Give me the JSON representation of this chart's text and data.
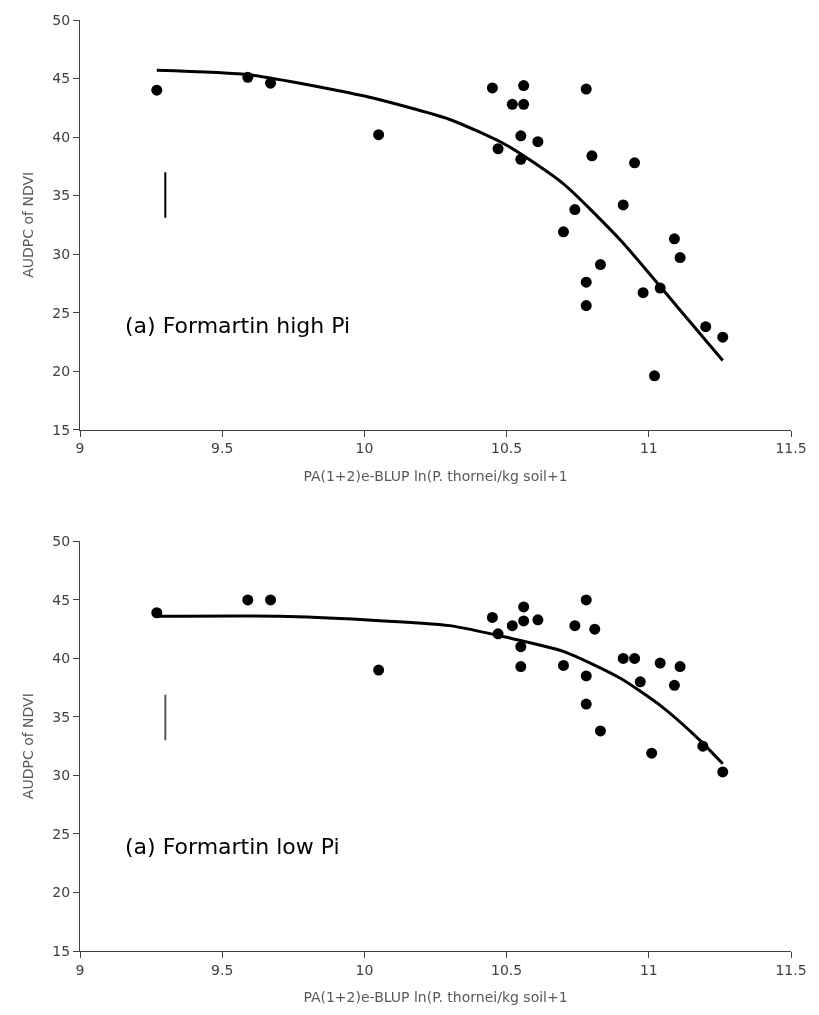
{
  "chart_data": [
    {
      "type": "scatter",
      "xlabel": "PA(1+2)e-BLUP ln(P. thornei/kg soil+1",
      "ylabel": "AUDPC of NDVI",
      "annotations": [
        "(a) Formartin high Pi"
      ],
      "xlim": [
        9,
        11.5
      ],
      "xticks": [
        9,
        9.5,
        10,
        10.5,
        11,
        11.5
      ],
      "ylim": [
        15,
        50
      ],
      "yticks": [
        15,
        20,
        25,
        30,
        35,
        40,
        45,
        50
      ],
      "marker": "circle",
      "series": [
        {
          "color": "#000000",
          "x": [
            9.27,
            9.59,
            9.67,
            10.05,
            10.45,
            10.47,
            10.52,
            10.55,
            10.56,
            10.56,
            10.55,
            10.61,
            10.7,
            10.74,
            10.78,
            10.8,
            10.78,
            10.78,
            10.83,
            10.91,
            10.95,
            10.98,
            11.02,
            11.04,
            11.09,
            11.11,
            11.2,
            11.26
          ],
          "values": [
            44.0,
            45.1,
            44.6,
            40.2,
            44.2,
            39.0,
            42.8,
            40.1,
            44.4,
            42.8,
            38.1,
            39.6,
            31.9,
            33.8,
            44.1,
            38.4,
            27.6,
            25.6,
            29.1,
            34.2,
            37.8,
            26.7,
            19.6,
            27.1,
            31.3,
            29.7,
            23.8,
            22.9
          ]
        },
        {
          "type": "line",
          "color": "#000000",
          "marker": "none",
          "x": [
            9.27,
            9.6,
            10.0,
            10.3,
            10.5,
            10.7,
            10.9,
            11.1,
            11.26
          ],
          "values": [
            45.7,
            45.3,
            43.5,
            41.5,
            39.3,
            36.0,
            31.2,
            25.5,
            20.9
          ]
        },
        {
          "type": "line",
          "color": "#000000",
          "marker": "none",
          "x": [
            9.3,
            9.3
          ],
          "values": [
            33.1,
            37.0
          ]
        }
      ]
    },
    {
      "type": "scatter",
      "xlabel": "PA(1+2)e-BLUP ln(P. thornei/kg soil+1",
      "ylabel": "AUDPC of NDVI",
      "annotations": [
        "(a) Formartin low Pi"
      ],
      "xlim": [
        9,
        11.5
      ],
      "xticks": [
        9,
        9.5,
        10,
        10.5,
        11,
        11.5
      ],
      "ylim": [
        15,
        50
      ],
      "yticks": [
        15,
        20,
        25,
        30,
        35,
        40,
        45,
        50
      ],
      "marker": "circle",
      "series": [
        {
          "color": "#000000",
          "x": [
            9.27,
            9.59,
            9.67,
            10.05,
            10.45,
            10.47,
            10.52,
            10.56,
            10.56,
            10.55,
            10.55,
            10.61,
            10.7,
            10.74,
            10.78,
            10.78,
            10.78,
            10.81,
            10.83,
            10.91,
            10.95,
            10.97,
            11.01,
            11.04,
            11.09,
            11.11,
            11.19,
            11.26
          ],
          "values": [
            43.9,
            45.0,
            45.0,
            39.0,
            43.5,
            42.1,
            42.8,
            44.4,
            43.2,
            41.0,
            39.3,
            43.3,
            39.4,
            42.8,
            45.0,
            38.5,
            36.1,
            42.5,
            33.8,
            40.0,
            40.0,
            38.0,
            31.9,
            39.6,
            37.7,
            39.3,
            32.5,
            30.3
          ]
        },
        {
          "type": "line",
          "color": "#000000",
          "marker": "none",
          "x": [
            9.27,
            9.7,
            10.0,
            10.3,
            10.5,
            10.7,
            10.9,
            11.05,
            11.18,
            11.26
          ],
          "values": [
            43.6,
            43.6,
            43.3,
            42.8,
            41.8,
            40.6,
            38.3,
            35.8,
            33.0,
            31.0
          ]
        },
        {
          "type": "line",
          "color": "#595959",
          "marker": "none",
          "x": [
            9.3,
            9.3
          ],
          "values": [
            33.0,
            36.9
          ]
        }
      ]
    }
  ]
}
